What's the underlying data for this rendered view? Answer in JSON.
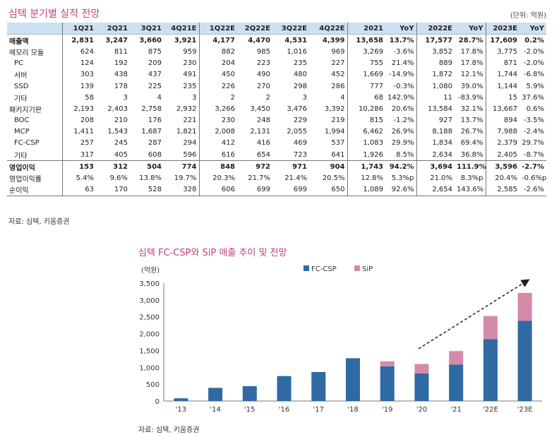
{
  "table": {
    "title": "심텍 분기별 실적 전망",
    "unit": "(단위: 억원)",
    "headers": [
      "",
      "1Q21",
      "2Q21",
      "3Q21",
      "4Q21E",
      "1Q22E",
      "2Q22E",
      "3Q22E",
      "4Q22E",
      "2021",
      "YoY",
      "2022E",
      "YoY",
      "2023E",
      "YoY"
    ],
    "rows": [
      {
        "label": "매출액",
        "bold": true,
        "sub": false,
        "cells": [
          "2,831",
          "3,247",
          "3,660",
          "3,921",
          "4,177",
          "4,470",
          "4,531",
          "4,399",
          "13,658",
          "13.7%",
          "17,577",
          "28.7%",
          "17,609",
          "0.2%"
        ]
      },
      {
        "label": "메모리 모듈",
        "bold": false,
        "sub": false,
        "cells": [
          "624",
          "811",
          "875",
          "959",
          "882",
          "985",
          "1,016",
          "969",
          "3,269",
          "-3.6%",
          "3,852",
          "17.8%",
          "3,775",
          "-2.0%"
        ]
      },
      {
        "label": "PC",
        "bold": false,
        "sub": true,
        "cells": [
          "124",
          "192",
          "209",
          "230",
          "204",
          "223",
          "235",
          "227",
          "755",
          "21.4%",
          "889",
          "17.8%",
          "871",
          "-2.0%"
        ]
      },
      {
        "label": "서버",
        "bold": false,
        "sub": true,
        "cells": [
          "303",
          "438",
          "437",
          "491",
          "450",
          "490",
          "480",
          "452",
          "1,669",
          "-14.9%",
          "1,872",
          "12.1%",
          "1,744",
          "-6.8%"
        ]
      },
      {
        "label": "SSD",
        "bold": false,
        "sub": true,
        "cells": [
          "139",
          "178",
          "225",
          "235",
          "226",
          "270",
          "298",
          "286",
          "777",
          "-0.3%",
          "1,080",
          "39.0%",
          "1,144",
          "5.9%"
        ]
      },
      {
        "label": "기타",
        "bold": false,
        "sub": true,
        "cells": [
          "58",
          "3",
          "4",
          "3",
          "2",
          "2",
          "3",
          "4",
          "68",
          "142.9%",
          "11",
          "-83.9%",
          "15",
          "37.6%"
        ]
      },
      {
        "label": "패키지기판",
        "bold": false,
        "sub": false,
        "cells": [
          "2,193",
          "2,403",
          "2,758",
          "2,932",
          "3,266",
          "3,450",
          "3,476",
          "3,392",
          "10,286",
          "20.6%",
          "13,584",
          "32.1%",
          "13,667",
          "0.6%"
        ]
      },
      {
        "label": "BOC",
        "bold": false,
        "sub": true,
        "cells": [
          "208",
          "210",
          "176",
          "221",
          "230",
          "248",
          "229",
          "219",
          "815",
          "-1.2%",
          "927",
          "13.7%",
          "894",
          "-3.5%"
        ]
      },
      {
        "label": "MCP",
        "bold": false,
        "sub": true,
        "cells": [
          "1,411",
          "1,543",
          "1,687",
          "1,821",
          "2,008",
          "2,131",
          "2,055",
          "1,994",
          "6,462",
          "26.9%",
          "8,188",
          "26.7%",
          "7,988",
          "-2.4%"
        ]
      },
      {
        "label": "FC-CSP",
        "bold": false,
        "sub": true,
        "cells": [
          "257",
          "245",
          "287",
          "294",
          "412",
          "416",
          "469",
          "537",
          "1,083",
          "29.9%",
          "1,834",
          "69.4%",
          "2,379",
          "29.7%"
        ]
      },
      {
        "label": "기타",
        "bold": false,
        "sub": true,
        "cells": [
          "317",
          "405",
          "608",
          "596",
          "616",
          "654",
          "723",
          "641",
          "1,926",
          "8.5%",
          "2,634",
          "36.8%",
          "2,405",
          "-8.7%"
        ]
      },
      {
        "label": "영업이익",
        "bold": true,
        "sub": false,
        "cells": [
          "153",
          "312",
          "504",
          "774",
          "848",
          "972",
          "971",
          "904",
          "1,743",
          "94.2%",
          "3,694",
          "111.9%",
          "3,596",
          "-2.7%"
        ]
      },
      {
        "label": "영업이익률",
        "bold": false,
        "sub": false,
        "cells": [
          "5.4%",
          "9.6%",
          "13.8%",
          "19.7%",
          "20.3%",
          "21.7%",
          "21.4%",
          "20.5%",
          "12.8%",
          "5.3%p",
          "21.0%",
          "8.3%p",
          "20.4%",
          "-0.6%p"
        ]
      },
      {
        "label": "순이익",
        "bold": false,
        "sub": false,
        "cells": [
          "63",
          "170",
          "528",
          "328",
          "606",
          "699",
          "699",
          "650",
          "1,089",
          "92.6%",
          "2,654",
          "143.6%",
          "2,585",
          "-2.6%"
        ]
      }
    ],
    "source": "자료: 심텍, 키움증권"
  },
  "chart_data": {
    "type": "bar",
    "stacked": true,
    "title": "심텍 FC-CSP와 SiP 매출 추이 및 전망",
    "ylabel": "(억원)",
    "categories": [
      "'13",
      "'14",
      "'15",
      "'16",
      "'17",
      "'18",
      "'19",
      "'20",
      "'21",
      "'22E",
      "'23E"
    ],
    "series": [
      {
        "name": "FC-CSP",
        "color": "#2f6aa3",
        "values": [
          80,
          390,
          440,
          740,
          860,
          1270,
          1030,
          820,
          1083,
          1834,
          2379
        ]
      },
      {
        "name": "SiP",
        "color": "#d68aa9",
        "values": [
          0,
          0,
          0,
          0,
          0,
          0,
          150,
          280,
          400,
          690,
          830
        ]
      }
    ],
    "ylim": [
      0,
      3500
    ],
    "yticks": [
      0,
      500,
      1000,
      1500,
      2000,
      2500,
      3000,
      3500
    ],
    "ytick_labels": [
      "0",
      "500",
      "1,000",
      "1,500",
      "2,000",
      "2,500",
      "3,000",
      "3,500"
    ],
    "legend_position": "top-right",
    "trend_arrow": true,
    "source": "자료: 심텍, 키움증권"
  }
}
